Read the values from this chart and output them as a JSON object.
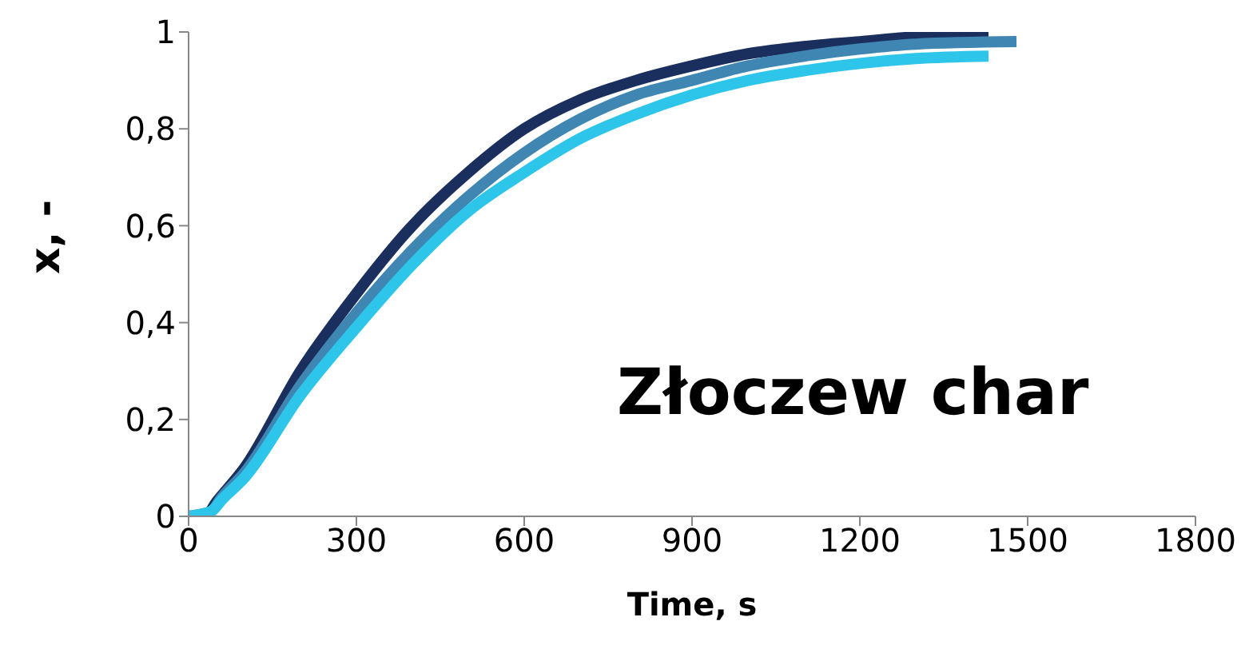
{
  "chart_data": {
    "type": "line",
    "xlabel": "Time, s",
    "ylabel": "x, -",
    "annotations": [
      "Złoczew char"
    ],
    "xlim": [
      0,
      1800
    ],
    "xticks": [
      0,
      300,
      600,
      900,
      1200,
      1500,
      1800
    ],
    "ylim": [
      0,
      1
    ],
    "yticks": [
      0,
      {
        "value": 0.2,
        "label": "0,2"
      },
      {
        "value": 0.4,
        "label": "0,4"
      },
      {
        "value": 0.6,
        "label": "0,6"
      },
      {
        "value": 0.8,
        "label": "0,8"
      },
      1
    ],
    "grid": false,
    "marker": "none",
    "line_style": "solid",
    "series": [
      {
        "color": "#1b2f5e",
        "x": [
          0,
          30,
          50,
          100,
          200,
          300,
          400,
          500,
          600,
          700,
          800,
          900,
          1000,
          1100,
          1200,
          1300,
          1430
        ],
        "values": [
          0,
          0,
          0.03,
          0.1,
          0.3,
          0.46,
          0.6,
          0.71,
          0.8,
          0.86,
          0.9,
          0.93,
          0.955,
          0.97,
          0.98,
          0.99,
          0.995
        ]
      },
      {
        "color": "#3f86b2",
        "x": [
          0,
          40,
          60,
          100,
          200,
          300,
          400,
          500,
          600,
          700,
          800,
          900,
          1000,
          1100,
          1200,
          1300,
          1480
        ],
        "values": [
          0,
          0.01,
          0.04,
          0.09,
          0.27,
          0.42,
          0.55,
          0.66,
          0.75,
          0.82,
          0.87,
          0.9,
          0.93,
          0.95,
          0.965,
          0.975,
          0.98
        ]
      },
      {
        "color": "#2ec5ea",
        "x": [
          0,
          40,
          60,
          100,
          200,
          300,
          400,
          500,
          600,
          700,
          800,
          900,
          1000,
          1100,
          1200,
          1300,
          1430
        ],
        "values": [
          0,
          0.01,
          0.035,
          0.08,
          0.25,
          0.39,
          0.52,
          0.63,
          0.71,
          0.78,
          0.83,
          0.87,
          0.9,
          0.92,
          0.935,
          0.945,
          0.95
        ]
      }
    ]
  }
}
